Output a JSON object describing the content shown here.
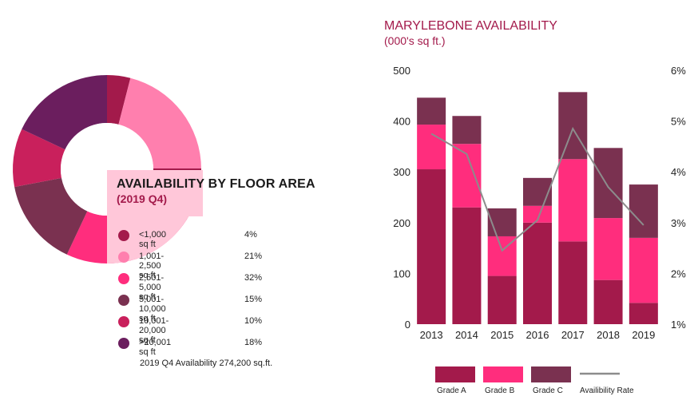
{
  "donut": {
    "title": "AVAILABILITY BY FLOOR AREA",
    "subtitle": "(2019 Q4)",
    "footnote": "2019 Q4 Availability 274,200 sq.ft.",
    "colors": {
      "highlight": "#ffc7d9",
      "accent": "#a31a4b"
    },
    "items": [
      {
        "label": "<1,000 sq ft",
        "value": 4,
        "pct": "4%",
        "color": "#a31a4b"
      },
      {
        "label": "1,001-2,500 sq ft",
        "value": 21,
        "pct": "21%",
        "color": "#ff7fae"
      },
      {
        "label": "2,501-5,000 sq ft",
        "value": 32,
        "pct": "32%",
        "color": "#ff2d7d"
      },
      {
        "label": "5,001-10,000 sq ft",
        "value": 15,
        "pct": "15%",
        "color": "#7a3150"
      },
      {
        "label": "10,001-20,000 sq ft",
        "value": 10,
        "pct": "10%",
        "color": "#c9205c"
      },
      {
        "label": ">20,001 sq ft",
        "value": 18,
        "pct": "18%",
        "color": "#6b1e5e"
      }
    ]
  },
  "chart_data": {
    "type": "bar",
    "stacked": true,
    "title": "MARYLEBONE AVAILABILITY",
    "subtitle": "(000's sq ft.)",
    "categories": [
      "2013",
      "2014",
      "2015",
      "2016",
      "2017",
      "2018",
      "2019"
    ],
    "series": [
      {
        "name": "Grade A",
        "color": "#a31a4b",
        "values": [
          305,
          230,
          95,
          200,
          163,
          87,
          42
        ]
      },
      {
        "name": "Grade B",
        "color": "#ff2d7d",
        "values": [
          88,
          125,
          78,
          33,
          162,
          122,
          128
        ]
      },
      {
        "name": "Grade C",
        "color": "#7a3150",
        "values": [
          53,
          55,
          55,
          55,
          132,
          138,
          105
        ]
      }
    ],
    "line": {
      "name": "Availibility Rate",
      "color": "#8c8c8c",
      "values": [
        4.75,
        4.35,
        2.45,
        3.05,
        4.85,
        3.7,
        2.95
      ]
    },
    "ylim": [
      0,
      500
    ],
    "y_ticks": [
      "0",
      "100",
      "200",
      "300",
      "400",
      "500"
    ],
    "y2lim": [
      1,
      6
    ],
    "y2_ticks": [
      "1%",
      "2%",
      "3%",
      "4%",
      "5%",
      "6%"
    ],
    "legend_position": "bottom"
  }
}
